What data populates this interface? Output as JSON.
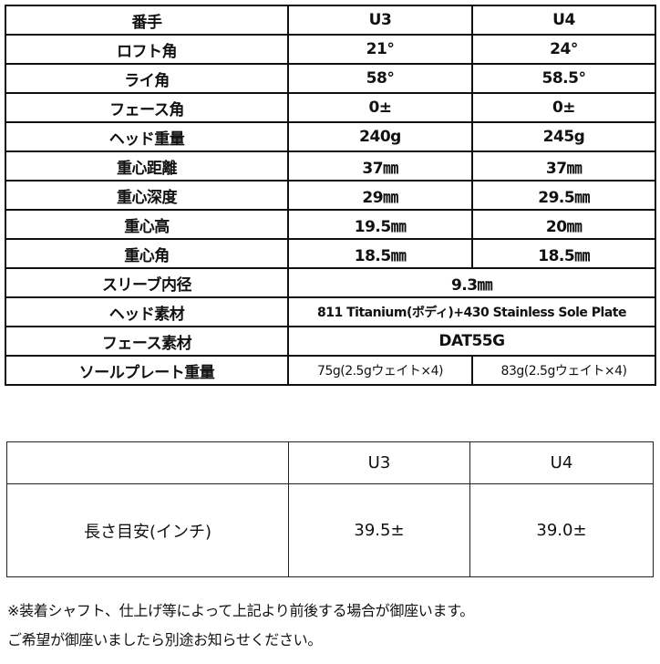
{
  "spec_table": {
    "header": [
      "番手",
      "U3",
      "U4"
    ],
    "rows": [
      [
        "ロフト角",
        "21°",
        "24°"
      ],
      [
        "ライ角",
        "58°",
        "58.5°"
      ],
      [
        "フェース角",
        "0±",
        "0±"
      ],
      [
        "ヘッド重量",
        "240g",
        "245g"
      ],
      [
        "重心距離",
        "37㎜",
        "37㎜"
      ],
      [
        "重心深度",
        "29㎜",
        "29.5㎜"
      ],
      [
        "重心高",
        "19.5㎜",
        "20㎜"
      ],
      [
        "重心角",
        "18.5㎜",
        "18.5㎜"
      ]
    ],
    "merged_rows": [
      [
        "スリーブ内径",
        "9.3㎜"
      ],
      [
        "ヘッド素材",
        "811 Titanium(ボディ)+430 Stainless Sole Plate"
      ],
      [
        "フェース素材",
        "DAT55G"
      ]
    ],
    "sole_row": [
      "ソールプレート重量",
      "75g(2.5gウェイト×4)",
      "83g(2.5gウェイト×4)"
    ]
  },
  "length_table": {
    "header": [
      "",
      "U3",
      "U4"
    ],
    "row": [
      "長さ目安(インチ)",
      "39.5±",
      "39.0±"
    ]
  },
  "notes": [
    "※装着シャフト、仕上げ等によって上記より前後する場合が御座います。",
    "ご希望が御座いましたら別途お知らせください。"
  ]
}
